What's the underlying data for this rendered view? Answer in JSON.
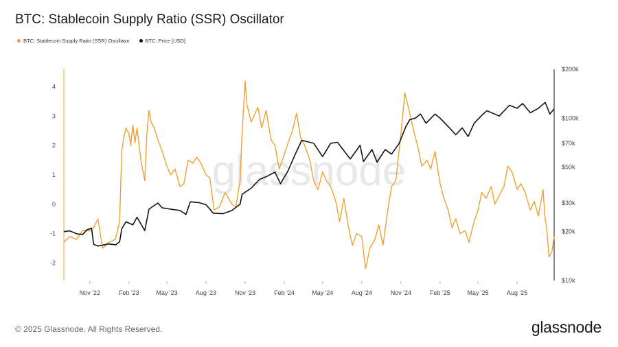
{
  "title": "BTC: Stablecoin Supply Ratio (SSR) Oscillator",
  "watermark": "glassnode",
  "footer": {
    "copyright": "© 2025 Glassnode. All Rights Reserved.",
    "brand": "glassnode"
  },
  "chart_data": {
    "type": "line",
    "title": "BTC: Stablecoin Supply Ratio (SSR) Oscillator",
    "x_tick_labels": [
      "Nov '22",
      "Feb '23",
      "May '23",
      "Aug '23",
      "Nov '23",
      "Feb '24",
      "May '24",
      "Aug '24",
      "Nov '24",
      "Feb '25",
      "May '25",
      "Aug '25"
    ],
    "x_range": [
      "2022-09-01",
      "2025-10-27"
    ],
    "left_axis": {
      "ticks": [
        -2,
        -1,
        0,
        1,
        2,
        3,
        4
      ],
      "range": [
        -2.6,
        4.6
      ]
    },
    "right_axis": {
      "scale": "log",
      "range": [
        10000,
        200000
      ],
      "ticks": [
        10000,
        20000,
        30000,
        50000,
        70000,
        100000,
        200000
      ],
      "tick_labels": [
        "$10k",
        "$20k",
        "$30k",
        "$50k",
        "$70k",
        "$100k",
        "$200k"
      ]
    },
    "grid": false,
    "legend_position": "top-left",
    "series": [
      {
        "name": "BTC: Stablecoin Supply Ratio (SSR) Oscillator",
        "axis": "left",
        "color": "#f0a030",
        "points": [
          [
            "2022-09-01",
            -1.3
          ],
          [
            "2022-09-15",
            -1.1
          ],
          [
            "2022-10-01",
            -1.2
          ],
          [
            "2022-10-15",
            -0.9
          ],
          [
            "2022-11-01",
            -0.9
          ],
          [
            "2022-11-10",
            -0.8
          ],
          [
            "2022-11-20",
            -0.5
          ],
          [
            "2022-12-01",
            -1.5
          ],
          [
            "2022-12-15",
            -1.3
          ],
          [
            "2022-12-31",
            -1.2
          ],
          [
            "2023-01-10",
            -0.6
          ],
          [
            "2023-01-15",
            1.8
          ],
          [
            "2023-01-20",
            2.3
          ],
          [
            "2023-01-25",
            2.6
          ],
          [
            "2023-02-01",
            2.4
          ],
          [
            "2023-02-05",
            2.0
          ],
          [
            "2023-02-10",
            2.7
          ],
          [
            "2023-02-15",
            2.1
          ],
          [
            "2023-02-20",
            2.6
          ],
          [
            "2023-03-01",
            1.5
          ],
          [
            "2023-03-10",
            0.8
          ],
          [
            "2023-03-15",
            2.4
          ],
          [
            "2023-03-20",
            3.2
          ],
          [
            "2023-03-25",
            2.8
          ],
          [
            "2023-04-01",
            2.6
          ],
          [
            "2023-04-10",
            2.2
          ],
          [
            "2023-04-20",
            1.8
          ],
          [
            "2023-05-01",
            1.3
          ],
          [
            "2023-05-10",
            1.0
          ],
          [
            "2023-05-20",
            1.2
          ],
          [
            "2023-06-01",
            0.6
          ],
          [
            "2023-06-10",
            0.7
          ],
          [
            "2023-06-20",
            1.5
          ],
          [
            "2023-07-01",
            1.4
          ],
          [
            "2023-07-10",
            1.6
          ],
          [
            "2023-07-20",
            1.4
          ],
          [
            "2023-08-01",
            1.0
          ],
          [
            "2023-08-10",
            0.9
          ],
          [
            "2023-08-20",
            -0.2
          ],
          [
            "2023-09-01",
            -0.1
          ],
          [
            "2023-09-15",
            0.4
          ],
          [
            "2023-10-01",
            0.0
          ],
          [
            "2023-10-10",
            -0.1
          ],
          [
            "2023-10-20",
            0.8
          ],
          [
            "2023-10-25",
            2.5
          ],
          [
            "2023-11-01",
            4.2
          ],
          [
            "2023-11-05",
            3.4
          ],
          [
            "2023-11-15",
            2.8
          ],
          [
            "2023-12-01",
            3.3
          ],
          [
            "2023-12-10",
            2.6
          ],
          [
            "2023-12-20",
            3.2
          ],
          [
            "2024-01-01",
            2.2
          ],
          [
            "2024-01-10",
            2.0
          ],
          [
            "2024-01-20",
            1.2
          ],
          [
            "2024-02-01",
            1.7
          ],
          [
            "2024-02-10",
            2.1
          ],
          [
            "2024-02-20",
            2.5
          ],
          [
            "2024-03-01",
            3.1
          ],
          [
            "2024-03-10",
            2.3
          ],
          [
            "2024-03-20",
            2.0
          ],
          [
            "2024-04-01",
            1.5
          ],
          [
            "2024-04-10",
            0.8
          ],
          [
            "2024-04-20",
            0.5
          ],
          [
            "2024-05-01",
            1.1
          ],
          [
            "2024-05-10",
            0.8
          ],
          [
            "2024-05-20",
            0.6
          ],
          [
            "2024-06-01",
            0.1
          ],
          [
            "2024-06-10",
            -0.6
          ],
          [
            "2024-06-20",
            0.2
          ],
          [
            "2024-07-01",
            -0.8
          ],
          [
            "2024-07-10",
            -1.4
          ],
          [
            "2024-07-20",
            -1.0
          ],
          [
            "2024-08-01",
            -1.1
          ],
          [
            "2024-08-05",
            -1.6
          ],
          [
            "2024-08-10",
            -2.2
          ],
          [
            "2024-08-20",
            -1.5
          ],
          [
            "2024-09-01",
            -1.2
          ],
          [
            "2024-09-10",
            -0.7
          ],
          [
            "2024-09-20",
            -1.4
          ],
          [
            "2024-10-01",
            -0.2
          ],
          [
            "2024-10-10",
            0.6
          ],
          [
            "2024-10-20",
            0.8
          ],
          [
            "2024-11-01",
            2.4
          ],
          [
            "2024-11-10",
            3.8
          ],
          [
            "2024-11-20",
            3.2
          ],
          [
            "2024-12-01",
            2.5
          ],
          [
            "2024-12-10",
            2.0
          ],
          [
            "2024-12-20",
            1.3
          ],
          [
            "2025-01-01",
            1.5
          ],
          [
            "2025-01-10",
            1.2
          ],
          [
            "2025-01-20",
            1.8
          ],
          [
            "2025-02-01",
            0.7
          ],
          [
            "2025-02-10",
            0.2
          ],
          [
            "2025-02-20",
            -0.2
          ],
          [
            "2025-03-01",
            -0.8
          ],
          [
            "2025-03-10",
            -0.5
          ],
          [
            "2025-03-20",
            -1.0
          ],
          [
            "2025-04-01",
            -0.9
          ],
          [
            "2025-04-10",
            -1.3
          ],
          [
            "2025-04-20",
            -0.7
          ],
          [
            "2025-05-01",
            -0.2
          ],
          [
            "2025-05-10",
            0.4
          ],
          [
            "2025-05-20",
            0.2
          ],
          [
            "2025-06-01",
            0.6
          ],
          [
            "2025-06-10",
            0.0
          ],
          [
            "2025-06-20",
            0.3
          ],
          [
            "2025-07-01",
            0.6
          ],
          [
            "2025-07-10",
            1.3
          ],
          [
            "2025-07-20",
            1.1
          ],
          [
            "2025-08-01",
            0.5
          ],
          [
            "2025-08-10",
            0.7
          ],
          [
            "2025-08-20",
            0.4
          ],
          [
            "2025-09-01",
            -0.2
          ],
          [
            "2025-09-10",
            0.1
          ],
          [
            "2025-09-20",
            -0.4
          ],
          [
            "2025-10-01",
            0.5
          ],
          [
            "2025-10-05",
            -0.4
          ],
          [
            "2025-10-10",
            -0.9
          ],
          [
            "2025-10-15",
            -1.8
          ],
          [
            "2025-10-22",
            -1.6
          ],
          [
            "2025-10-27",
            -1.1
          ]
        ]
      },
      {
        "name": "BTC: Price [USD]",
        "axis": "right",
        "color": "#111111",
        "points": [
          [
            "2022-09-01",
            20000
          ],
          [
            "2022-09-15",
            20200
          ],
          [
            "2022-10-01",
            19400
          ],
          [
            "2022-10-15",
            19200
          ],
          [
            "2022-10-25",
            20500
          ],
          [
            "2022-11-05",
            21000
          ],
          [
            "2022-11-10",
            16700
          ],
          [
            "2022-11-20",
            16300
          ],
          [
            "2022-12-15",
            16800
          ],
          [
            "2023-01-01",
            16600
          ],
          [
            "2023-01-10",
            17300
          ],
          [
            "2023-01-15",
            20800
          ],
          [
            "2023-01-25",
            23000
          ],
          [
            "2023-02-10",
            22000
          ],
          [
            "2023-02-20",
            24500
          ],
          [
            "2023-03-10",
            20300
          ],
          [
            "2023-03-20",
            27500
          ],
          [
            "2023-04-10",
            30000
          ],
          [
            "2023-04-20",
            28000
          ],
          [
            "2023-05-10",
            27500
          ],
          [
            "2023-06-01",
            27000
          ],
          [
            "2023-06-15",
            25500
          ],
          [
            "2023-06-25",
            30500
          ],
          [
            "2023-07-15",
            30200
          ],
          [
            "2023-08-01",
            29300
          ],
          [
            "2023-08-18",
            26000
          ],
          [
            "2023-09-10",
            25800
          ],
          [
            "2023-10-01",
            27000
          ],
          [
            "2023-10-20",
            29500
          ],
          [
            "2023-10-25",
            34000
          ],
          [
            "2023-11-15",
            37000
          ],
          [
            "2023-12-05",
            42000
          ],
          [
            "2023-12-20",
            43500
          ],
          [
            "2024-01-10",
            46500
          ],
          [
            "2024-01-23",
            39500
          ],
          [
            "2024-02-10",
            47500
          ],
          [
            "2024-02-28",
            61000
          ],
          [
            "2024-03-13",
            73000
          ],
          [
            "2024-04-10",
            70000
          ],
          [
            "2024-04-20",
            64000
          ],
          [
            "2024-05-01",
            58000
          ],
          [
            "2024-05-20",
            70000
          ],
          [
            "2024-06-05",
            71000
          ],
          [
            "2024-07-05",
            56000
          ],
          [
            "2024-07-28",
            68000
          ],
          [
            "2024-08-05",
            54000
          ],
          [
            "2024-08-25",
            64000
          ],
          [
            "2024-09-06",
            53500
          ],
          [
            "2024-09-25",
            64000
          ],
          [
            "2024-10-10",
            60000
          ],
          [
            "2024-10-28",
            70000
          ],
          [
            "2024-11-12",
            88000
          ],
          [
            "2024-11-22",
            98000
          ],
          [
            "2024-12-05",
            100000
          ],
          [
            "2024-12-17",
            106000
          ],
          [
            "2024-12-30",
            93000
          ],
          [
            "2025-01-20",
            106000
          ],
          [
            "2025-02-01",
            100000
          ],
          [
            "2025-02-25",
            86000
          ],
          [
            "2025-03-10",
            79000
          ],
          [
            "2025-03-25",
            87000
          ],
          [
            "2025-04-08",
            77000
          ],
          [
            "2025-04-22",
            93000
          ],
          [
            "2025-05-10",
            104000
          ],
          [
            "2025-05-22",
            111000
          ],
          [
            "2025-06-20",
            103000
          ],
          [
            "2025-07-14",
            120000
          ],
          [
            "2025-08-01",
            115000
          ],
          [
            "2025-08-14",
            123000
          ],
          [
            "2025-09-01",
            108000
          ],
          [
            "2025-09-20",
            115000
          ],
          [
            "2025-10-06",
            125000
          ],
          [
            "2025-10-17",
            106000
          ],
          [
            "2025-10-27",
            114000
          ]
        ]
      }
    ]
  }
}
